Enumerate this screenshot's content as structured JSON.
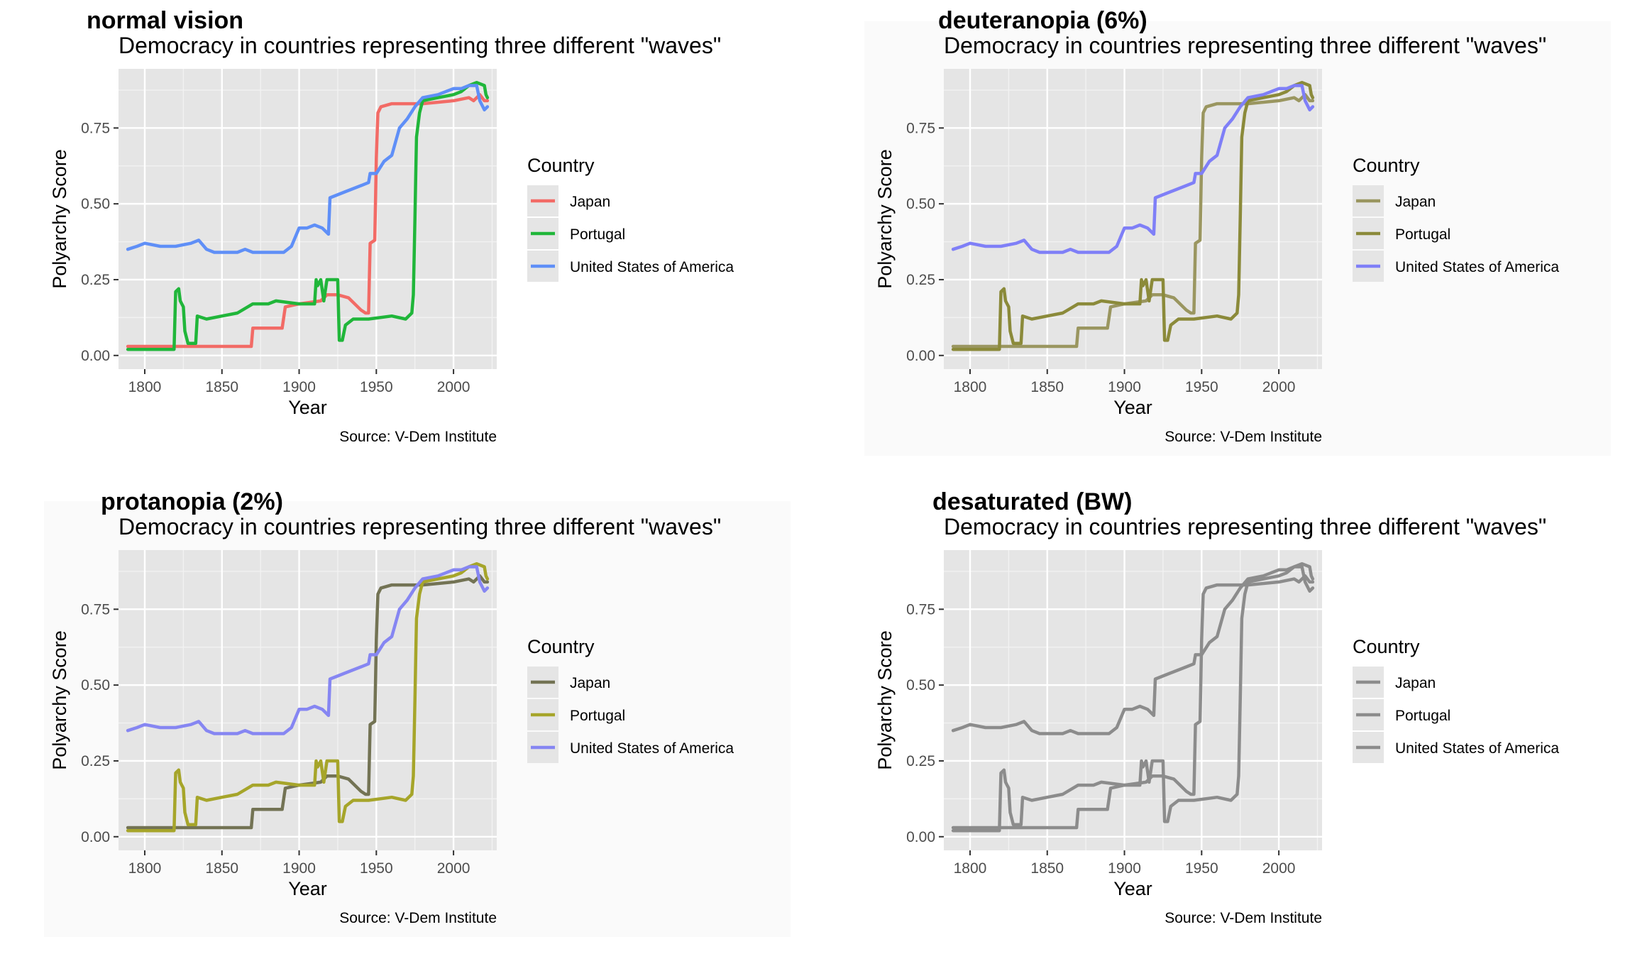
{
  "chart_data": [
    {
      "panel_title": "normal vision",
      "type": "line",
      "title": "Democracy in countries representing three different \"waves\"",
      "xlabel": "Year",
      "ylabel": "Polyarchy Score",
      "caption": "Source: V-Dem Institute",
      "legend_title": "Country",
      "legend_position": "right",
      "xlim": [
        1783,
        2028
      ],
      "ylim": [
        -0.045,
        0.945
      ],
      "xticks": [
        "1800",
        "1850",
        "1900",
        "1950",
        "2000"
      ],
      "yticks": [
        "0.00",
        "0.25",
        "0.50",
        "0.75"
      ],
      "grid": true,
      "series": [
        {
          "name": "Japan",
          "color": "#f26b66"
        },
        {
          "name": "Portugal",
          "color": "#20b63a"
        },
        {
          "name": "United States of America",
          "color": "#5f8ff7"
        }
      ]
    },
    {
      "panel_title": "deuteranopia (6%)",
      "type": "line",
      "title": "Democracy in countries representing three different \"waves\"",
      "xlabel": "Year",
      "ylabel": "Polyarchy Score",
      "caption": "Source: V-Dem Institute",
      "legend_title": "Country",
      "legend_position": "right",
      "xlim": [
        1783,
        2028
      ],
      "ylim": [
        -0.045,
        0.945
      ],
      "xticks": [
        "1800",
        "1850",
        "1900",
        "1950",
        "2000"
      ],
      "yticks": [
        "0.00",
        "0.25",
        "0.50",
        "0.75"
      ],
      "grid": true,
      "series": [
        {
          "name": "Japan",
          "color": "#9a9660"
        },
        {
          "name": "Portugal",
          "color": "#8b8a3a"
        },
        {
          "name": "United States of America",
          "color": "#7f7ff7"
        }
      ]
    },
    {
      "panel_title": "protanopia (2%)",
      "type": "line",
      "title": "Democracy in countries representing three different \"waves\"",
      "xlabel": "Year",
      "ylabel": "Polyarchy Score",
      "caption": "Source: V-Dem Institute",
      "legend_title": "Country",
      "legend_position": "right",
      "xlim": [
        1783,
        2028
      ],
      "ylim": [
        -0.045,
        0.945
      ],
      "xticks": [
        "1800",
        "1850",
        "1900",
        "1950",
        "2000"
      ],
      "yticks": [
        "0.00",
        "0.25",
        "0.50",
        "0.75"
      ],
      "grid": true,
      "series": [
        {
          "name": "Japan",
          "color": "#737354"
        },
        {
          "name": "Portugal",
          "color": "#a6a52a"
        },
        {
          "name": "United States of America",
          "color": "#8686f2"
        }
      ]
    },
    {
      "panel_title": "desaturated (BW)",
      "type": "line",
      "title": "Democracy in countries representing three different \"waves\"",
      "xlabel": "Year",
      "ylabel": "Polyarchy Score",
      "caption": "Source: V-Dem Institute",
      "legend_title": "Country",
      "legend_position": "right",
      "xlim": [
        1783,
        2028
      ],
      "ylim": [
        -0.045,
        0.945
      ],
      "xticks": [
        "1800",
        "1850",
        "1900",
        "1950",
        "2000"
      ],
      "yticks": [
        "0.00",
        "0.25",
        "0.50",
        "0.75"
      ],
      "grid": true,
      "series": [
        {
          "name": "Japan",
          "color": "#8c8c8c"
        },
        {
          "name": "Portugal",
          "color": "#8c8c8c"
        },
        {
          "name": "United States of America",
          "color": "#8c8c8c"
        }
      ]
    }
  ],
  "series_values": {
    "Japan": [
      [
        1789,
        0.03
      ],
      [
        1800,
        0.03
      ],
      [
        1830,
        0.03
      ],
      [
        1867,
        0.03
      ],
      [
        1869,
        0.03
      ],
      [
        1870,
        0.09
      ],
      [
        1889,
        0.09
      ],
      [
        1891,
        0.16
      ],
      [
        1900,
        0.17
      ],
      [
        1914,
        0.18
      ],
      [
        1918,
        0.2
      ],
      [
        1925,
        0.2
      ],
      [
        1932,
        0.19
      ],
      [
        1940,
        0.15
      ],
      [
        1943,
        0.14
      ],
      [
        1945,
        0.14
      ],
      [
        1946,
        0.37
      ],
      [
        1949,
        0.38
      ],
      [
        1950,
        0.65
      ],
      [
        1951,
        0.8
      ],
      [
        1953,
        0.82
      ],
      [
        1960,
        0.83
      ],
      [
        1980,
        0.83
      ],
      [
        2000,
        0.84
      ],
      [
        2010,
        0.85
      ],
      [
        2013,
        0.84
      ],
      [
        2017,
        0.86
      ],
      [
        2020,
        0.84
      ],
      [
        2022,
        0.84
      ]
    ],
    "Portugal": [
      [
        1789,
        0.02
      ],
      [
        1819,
        0.02
      ],
      [
        1820,
        0.21
      ],
      [
        1822,
        0.22
      ],
      [
        1823,
        0.18
      ],
      [
        1825,
        0.16
      ],
      [
        1826,
        0.08
      ],
      [
        1828,
        0.04
      ],
      [
        1833,
        0.04
      ],
      [
        1834,
        0.13
      ],
      [
        1840,
        0.12
      ],
      [
        1850,
        0.13
      ],
      [
        1860,
        0.14
      ],
      [
        1870,
        0.17
      ],
      [
        1880,
        0.17
      ],
      [
        1885,
        0.18
      ],
      [
        1900,
        0.17
      ],
      [
        1910,
        0.17
      ],
      [
        1911,
        0.25
      ],
      [
        1912,
        0.23
      ],
      [
        1914,
        0.25
      ],
      [
        1916,
        0.18
      ],
      [
        1918,
        0.25
      ],
      [
        1925,
        0.25
      ],
      [
        1926,
        0.05
      ],
      [
        1928,
        0.05
      ],
      [
        1930,
        0.1
      ],
      [
        1935,
        0.12
      ],
      [
        1945,
        0.12
      ],
      [
        1960,
        0.13
      ],
      [
        1969,
        0.12
      ],
      [
        1973,
        0.14
      ],
      [
        1974,
        0.2
      ],
      [
        1975,
        0.45
      ],
      [
        1976,
        0.72
      ],
      [
        1978,
        0.8
      ],
      [
        1980,
        0.84
      ],
      [
        1990,
        0.85
      ],
      [
        2000,
        0.86
      ],
      [
        2005,
        0.87
      ],
      [
        2010,
        0.89
      ],
      [
        2015,
        0.9
      ],
      [
        2020,
        0.89
      ],
      [
        2021,
        0.86
      ],
      [
        2022,
        0.85
      ]
    ],
    "United States of America": [
      [
        1789,
        0.35
      ],
      [
        1795,
        0.36
      ],
      [
        1800,
        0.37
      ],
      [
        1810,
        0.36
      ],
      [
        1820,
        0.36
      ],
      [
        1830,
        0.37
      ],
      [
        1835,
        0.38
      ],
      [
        1840,
        0.35
      ],
      [
        1845,
        0.34
      ],
      [
        1850,
        0.34
      ],
      [
        1860,
        0.34
      ],
      [
        1865,
        0.35
      ],
      [
        1870,
        0.34
      ],
      [
        1880,
        0.34
      ],
      [
        1890,
        0.34
      ],
      [
        1895,
        0.36
      ],
      [
        1900,
        0.42
      ],
      [
        1905,
        0.42
      ],
      [
        1910,
        0.43
      ],
      [
        1915,
        0.42
      ],
      [
        1919,
        0.4
      ],
      [
        1920,
        0.52
      ],
      [
        1930,
        0.54
      ],
      [
        1940,
        0.56
      ],
      [
        1945,
        0.57
      ],
      [
        1946,
        0.6
      ],
      [
        1950,
        0.6
      ],
      [
        1955,
        0.64
      ],
      [
        1960,
        0.66
      ],
      [
        1965,
        0.75
      ],
      [
        1970,
        0.78
      ],
      [
        1975,
        0.82
      ],
      [
        1980,
        0.85
      ],
      [
        1990,
        0.86
      ],
      [
        2000,
        0.88
      ],
      [
        2005,
        0.88
      ],
      [
        2010,
        0.89
      ],
      [
        2015,
        0.89
      ],
      [
        2017,
        0.84
      ],
      [
        2019,
        0.82
      ],
      [
        2020,
        0.81
      ],
      [
        2022,
        0.82
      ]
    ]
  }
}
